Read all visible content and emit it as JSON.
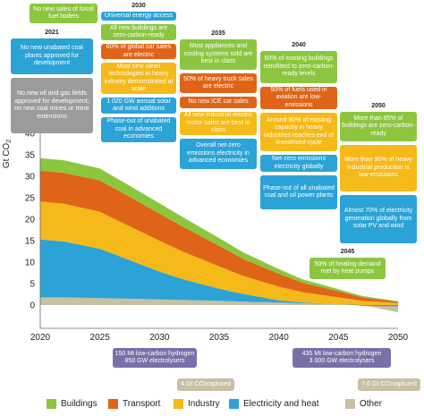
{
  "chart_data": {
    "type": "area",
    "stacked": true,
    "ylabel": "Gt CO",
    "ylabel_sub": "2",
    "x_ticks": [
      "2020",
      "2025",
      "2030",
      "2035",
      "2040",
      "2045",
      "2050"
    ],
    "y_ticks": [
      "0",
      "5",
      "10",
      "15",
      "20",
      "25",
      "30",
      "35",
      "40"
    ],
    "xlim": [
      2020,
      2050
    ],
    "ylim": [
      -2,
      40
    ],
    "legend_position": "bottom",
    "x": [
      2020,
      2022,
      2025,
      2027,
      2030,
      2032,
      2035,
      2037,
      2040,
      2042,
      2045,
      2047,
      2050
    ],
    "series": [
      {
        "name": "Other",
        "color": "#c9bfa3",
        "values": [
          1.8,
          1.8,
          1.6,
          1.5,
          1.3,
          1.2,
          1.0,
          0.8,
          0.6,
          0.4,
          0.2,
          0.05,
          -1.7
        ]
      },
      {
        "name": "Electricity and heat",
        "color": "#2ba3d6",
        "values": [
          13.5,
          13.0,
          11.5,
          9.5,
          6.5,
          4.8,
          2.8,
          1.8,
          0.5,
          0.2,
          0.0,
          -0.2,
          -0.3
        ]
      },
      {
        "name": "Industry",
        "color": "#f5b919",
        "values": [
          8.8,
          8.8,
          8.6,
          8.0,
          7.2,
          6.4,
          5.2,
          4.2,
          3.2,
          2.4,
          1.6,
          1.0,
          0.5
        ]
      },
      {
        "name": "Transport",
        "color": "#e06418",
        "values": [
          7.2,
          7.2,
          7.3,
          7.0,
          6.3,
          5.8,
          4.8,
          4.0,
          3.0,
          2.2,
          1.4,
          0.8,
          0.3
        ]
      },
      {
        "name": "Buildings",
        "color": "#8cc63f",
        "values": [
          2.9,
          2.9,
          2.8,
          2.6,
          2.4,
          2.2,
          1.8,
          1.5,
          1.1,
          0.8,
          0.5,
          0.3,
          0.1
        ]
      }
    ],
    "milestones": [
      {
        "year": "2025",
        "boxes": [
          {
            "color": "#8cc63f",
            "text": "No new sales of fossil fuel boilers"
          }
        ]
      },
      {
        "year": "2021",
        "boxes": [
          {
            "color": "#2ba3d6",
            "text": "No new unabated coal plants approved for development"
          },
          {
            "color": "#9b9b9b",
            "text": "No new oil and gas fields approved for development; no new coal mines or mine extensions"
          }
        ]
      },
      {
        "year": "2030",
        "boxes": [
          {
            "color": "#2ba3d6",
            "text": "Universal energy access"
          },
          {
            "color": "#8cc63f",
            "text": "All new buildings are zero-carbon-ready"
          },
          {
            "color": "#e06418",
            "text": "60% of global car sales are electric"
          },
          {
            "color": "#f5b919",
            "text": "Most new clean technologies in heavy industry demonstrated at scale"
          },
          {
            "color": "#2ba3d6",
            "text": "1 020 GW annual solar and wind additions"
          },
          {
            "color": "#2ba3d6",
            "text": "Phase-out of unabated coal in advanced economies"
          }
        ]
      },
      {
        "year": "2035",
        "boxes": [
          {
            "color": "#8cc63f",
            "text": "Most appliances and cooling systems sold are best in class"
          },
          {
            "color": "#e06418",
            "text": "50% of heavy truck sales are electric"
          },
          {
            "color": "#e06418",
            "text": "No new ICE car sales"
          },
          {
            "color": "#f5b919",
            "text": "All new industrial electric motor sales are best in class"
          },
          {
            "color": "#2ba3d6",
            "text": "Overall net-zero emissions electricity in advanced economies"
          }
        ]
      },
      {
        "year": "2040",
        "boxes": [
          {
            "color": "#8cc63f",
            "text": "50% of existing buildings retrofitted to zero-carbon-ready levels"
          },
          {
            "color": "#e06418",
            "text": "50% of fuels used in aviation are low-emissions"
          },
          {
            "color": "#f5b919",
            "text": "Around 90% of existing capacity in heavy industries reaches end of investment cycle"
          },
          {
            "color": "#2ba3d6",
            "text": "Net-zero emissions electricity globally"
          },
          {
            "color": "#2ba3d6",
            "text": "Phase-out of all unabated coal and oil power plants"
          }
        ]
      },
      {
        "year": "2050",
        "boxes": [
          {
            "color": "#8cc63f",
            "text": "More than 85% of buildings are zero-carbon-ready"
          },
          {
            "color": "#f5b919",
            "text": "More than 90% of heavy industrial production is low-emissions"
          },
          {
            "color": "#2ba3d6",
            "text": "Almost 70% of electricity generation globally from solar PV and wind"
          }
        ]
      },
      {
        "year": "2045",
        "boxes": [
          {
            "color": "#8cc63f",
            "text": "50% of heating demand met by heat pumps"
          }
        ]
      }
    ],
    "bottom_notes": [
      {
        "color": "#7a6fa8",
        "text": "150 Mt low-carbon hydrogen\n850 GW electrolysers"
      },
      {
        "color": "#c9bfa3",
        "text_main": "4 Gt CO",
        "text_sub": "2",
        "text_after": " captured"
      },
      {
        "color": "#7a6fa8",
        "text": "435 Mt low-carbon hydrogen\n3 000 GW electrolysers"
      },
      {
        "color": "#c9bfa3",
        "text_main": "7.6 Gt CO",
        "text_sub": "2",
        "text_after": " captured"
      }
    ]
  }
}
